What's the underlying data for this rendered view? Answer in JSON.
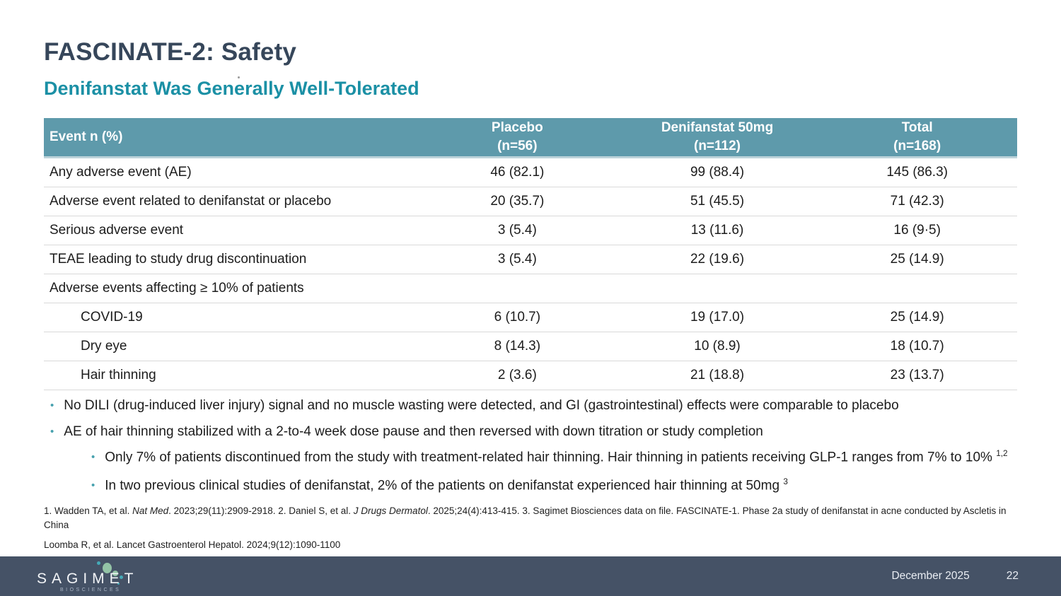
{
  "slide": {
    "title": "FASCINATE-2: Safety",
    "subtitle": "Denifanstat Was Generally Well-Tolerated"
  },
  "colors": {
    "title_color": "#36465a",
    "accent_teal": "#1b90a5",
    "table_header_bg": "#5e9aab",
    "footer_bg": "#455266",
    "bullet_dot": "#47a1ae"
  },
  "table": {
    "header": {
      "event_label": "Event n (%)",
      "columns": [
        {
          "line1": "Placebo",
          "line2": "(n=56)"
        },
        {
          "line1": "Denifanstat 50mg",
          "line2": "(n=112)"
        },
        {
          "line1": "Total",
          "line2": "(n=168)"
        }
      ]
    },
    "rows": [
      {
        "label": "Any adverse event (AE)",
        "indent": false,
        "section": false,
        "values": [
          "46 (82.1)",
          "99 (88.4)",
          "145 (86.3)"
        ]
      },
      {
        "label": "Adverse event related to denifanstat or placebo",
        "indent": false,
        "section": false,
        "values": [
          "20 (35.7)",
          "51 (45.5)",
          "71 (42.3)"
        ]
      },
      {
        "label": "Serious adverse event",
        "indent": false,
        "section": false,
        "values": [
          "3 (5.4)",
          "13 (11.6)",
          "16 (9·5)"
        ]
      },
      {
        "label": "TEAE leading to study drug discontinuation",
        "indent": false,
        "section": false,
        "values": [
          "3 (5.4)",
          "22 (19.6)",
          "25 (14.9)"
        ]
      },
      {
        "label": "Adverse events affecting ≥ 10% of patients",
        "indent": false,
        "section": true,
        "values": [
          "",
          "",
          ""
        ]
      },
      {
        "label": "COVID-19",
        "indent": true,
        "section": false,
        "values": [
          "6 (10.7)",
          "19 (17.0)",
          "25 (14.9)"
        ]
      },
      {
        "label": "Dry eye",
        "indent": true,
        "section": false,
        "values": [
          "8 (14.3)",
          "10 (8.9)",
          "18 (10.7)"
        ]
      },
      {
        "label": "Hair thinning",
        "indent": true,
        "section": false,
        "values": [
          "2 (3.6)",
          "21 (18.8)",
          "23 (13.7)"
        ]
      }
    ]
  },
  "bullets": [
    {
      "level": 1,
      "text": "No DILI (drug-induced liver injury) signal and no muscle wasting were detected, and GI (gastrointestinal) effects were comparable to placebo",
      "sup": ""
    },
    {
      "level": 1,
      "text": "AE of hair thinning stabilized with a 2-to-4 week dose pause and then reversed with down titration or study completion",
      "sup": ""
    },
    {
      "level": 2,
      "text": "Only 7% of patients discontinued from the study with treatment-related hair thinning. Hair thinning in patients receiving GLP-1 ranges from 7% to 10%",
      "sup": "1,2"
    },
    {
      "level": 2,
      "text": "In two previous clinical studies of denifanstat, 2% of the patients on denifanstat experienced hair thinning at 50mg",
      "sup": "3"
    }
  ],
  "footnotes": {
    "line1_segments": [
      {
        "text": "1. Wadden TA, et al. ",
        "italic": false
      },
      {
        "text": "Nat Med",
        "italic": true
      },
      {
        "text": ". 2023;29(11):2909-2918. 2. Daniel S, et al. ",
        "italic": false
      },
      {
        "text": "J Drugs Dermatol",
        "italic": true
      },
      {
        "text": ". 2025;24(4):413-415. 3. Sagimet Biosciences data on file. FASCINATE-1. Phase 2a study of denifanstat in acne conducted by Ascletis in China",
        "italic": false
      }
    ],
    "line2": "Loomba R, et al. Lancet Gastroenterol Hepatol. 2024;9(12):1090-1100"
  },
  "footer": {
    "logo_text": "SAGIMET",
    "logo_subtext": "BIOSCIENCES",
    "date": "December 2025",
    "page_number": "22"
  }
}
